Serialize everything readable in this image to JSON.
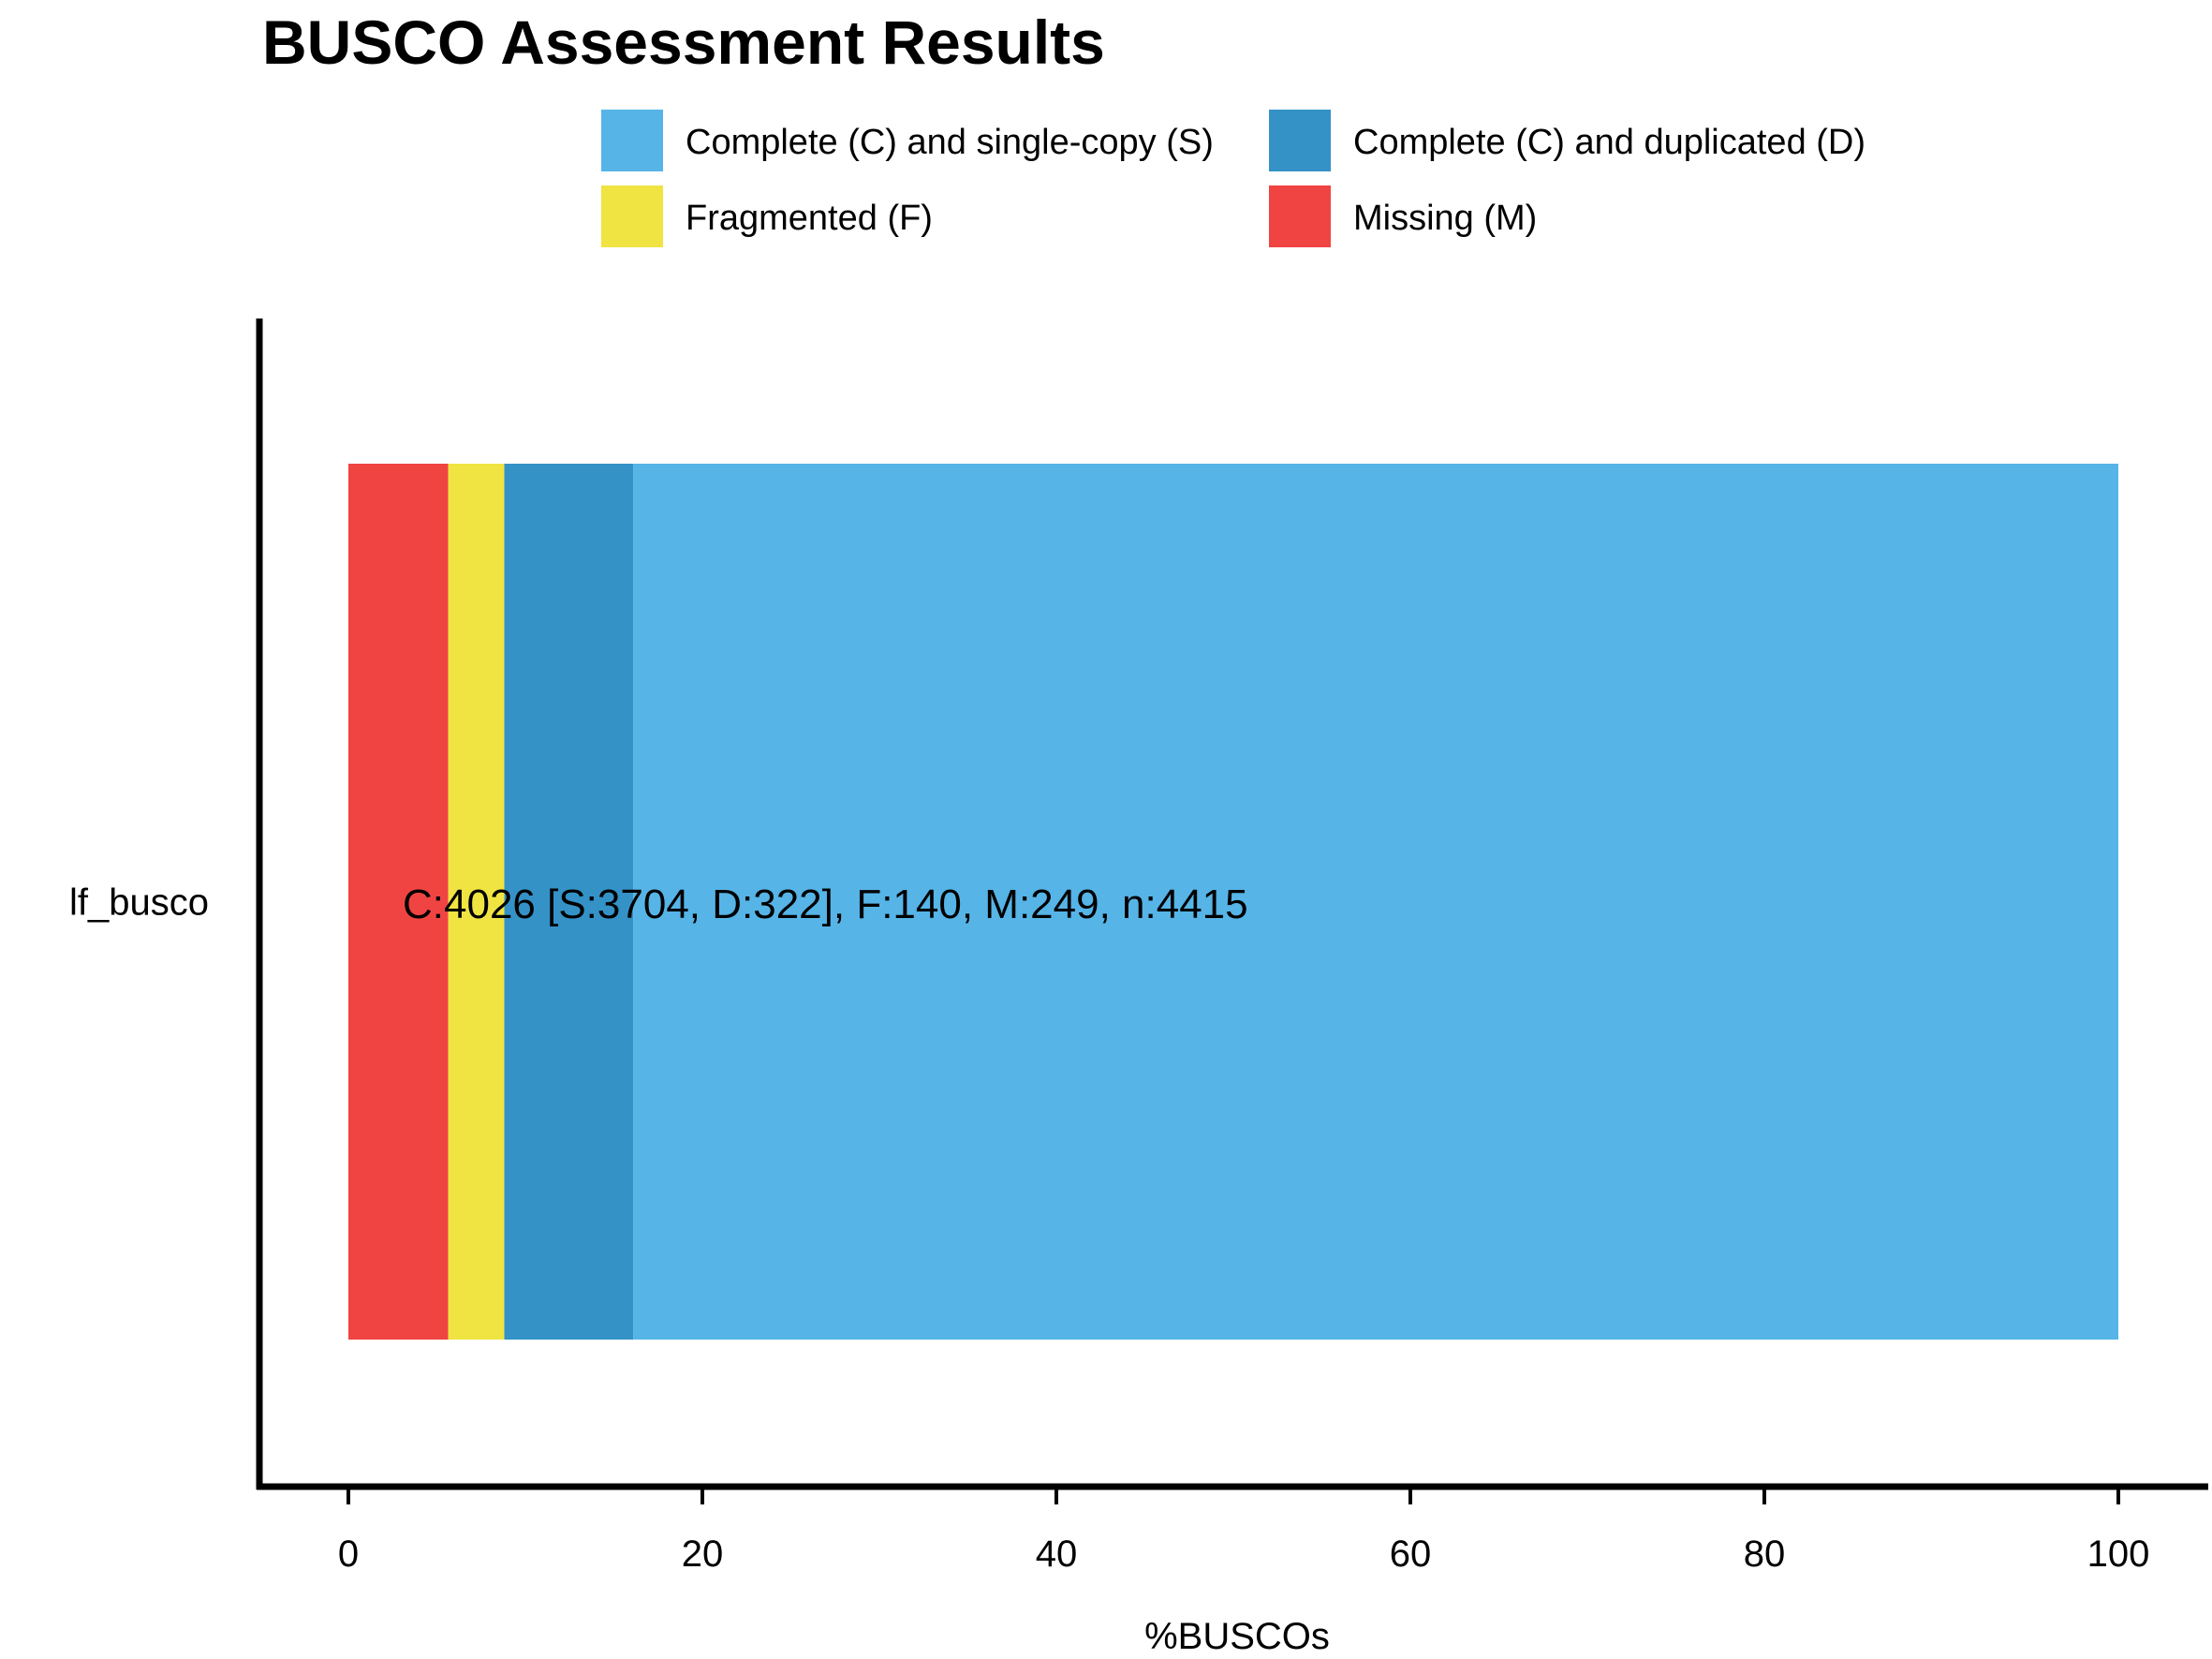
{
  "chart_data": {
    "type": "bar",
    "orientation": "horizontal",
    "stacked": true,
    "title": "BUSCO Assessment Results",
    "xlabel": "%BUSCOs",
    "ylabel": "",
    "xlim": [
      0,
      100
    ],
    "x_ticks": [
      0,
      20,
      40,
      60,
      80,
      100
    ],
    "categories": [
      "lf_busco"
    ],
    "series": [
      {
        "name": "Missing (M)",
        "color": "#F04442",
        "values": [
          5.64
        ]
      },
      {
        "name": "Fragmented (F)",
        "color": "#F0E442",
        "values": [
          3.17
        ]
      },
      {
        "name": "Complete (C) and duplicated (D)",
        "color": "#3492C7",
        "values": [
          7.29
        ]
      },
      {
        "name": "Complete (C) and single-copy (S)",
        "color": "#56B4E7",
        "values": [
          83.9
        ]
      }
    ],
    "legend": {
      "position": "top",
      "entries": [
        {
          "label": "Complete (C) and single-copy (S)",
          "color": "#56B4E7"
        },
        {
          "label": "Complete (C) and duplicated (D)",
          "color": "#3492C7"
        },
        {
          "label": "Fragmented (F)",
          "color": "#F0E442"
        },
        {
          "label": "Missing (M)",
          "color": "#F04442"
        }
      ]
    },
    "annotation": "C:4026 [S:3704, D:322], F:140, M:249, n:4415",
    "grid": false
  }
}
